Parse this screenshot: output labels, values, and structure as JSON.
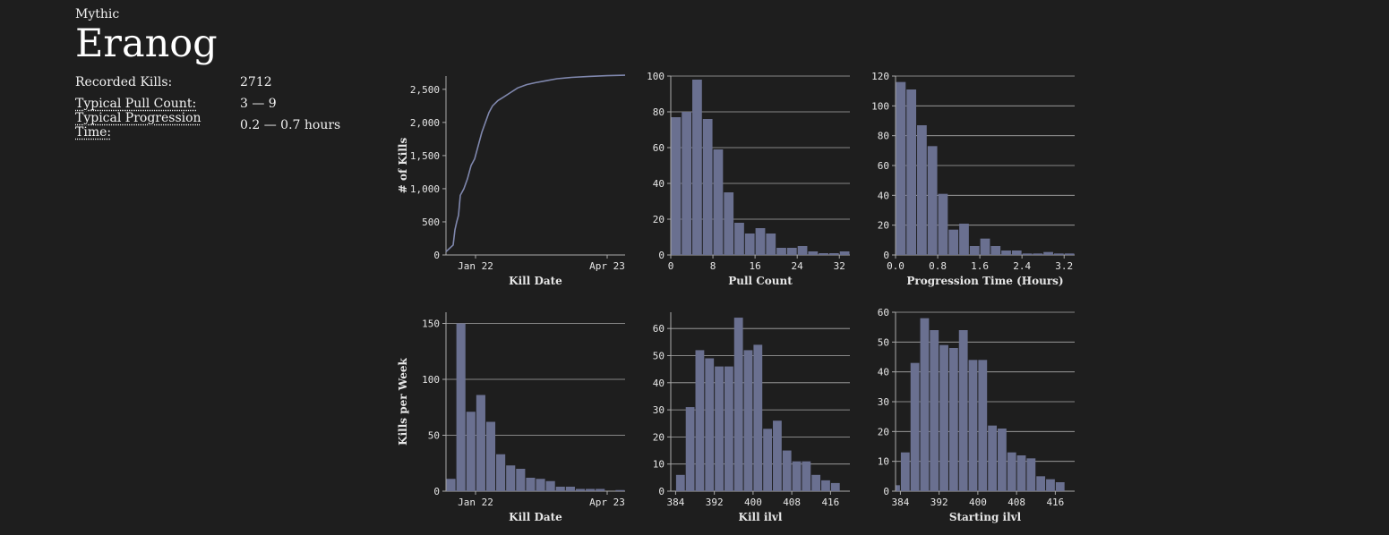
{
  "header": {
    "difficulty": "Mythic",
    "boss_name": "Eranog"
  },
  "stats": [
    {
      "label": "Recorded Kills:",
      "value": "2712",
      "underline": false
    },
    {
      "label": "Typical Pull Count:",
      "value": "3 — 9",
      "underline": true
    },
    {
      "label": "Typical Progression Time:",
      "value": "0.2 — 0.7 hours",
      "underline": true
    }
  ],
  "colors": {
    "bar": "#6a7090",
    "line": "#8088ae",
    "grid": "#aaaaaa",
    "background": "#1e1e1e"
  },
  "chart_data": [
    {
      "id": "cumulative",
      "type": "line",
      "xlabel": "Kill Date",
      "ylabel": "# of Kills",
      "xticks": [
        "Jan 22",
        "Apr 23"
      ],
      "ylim": [
        0,
        2700
      ],
      "yticks": [
        {
          "v": 0,
          "t": "0"
        },
        {
          "v": 500,
          "t": "500"
        },
        {
          "v": 1000,
          "t": "1,000"
        },
        {
          "v": 1500,
          "t": "1,500"
        },
        {
          "v": 2000,
          "t": "2,000"
        },
        {
          "v": 2500,
          "t": "2,500"
        }
      ],
      "grid": false,
      "x": [
        0,
        0.02,
        0.04,
        0.05,
        0.06,
        0.07,
        0.08,
        0.09,
        0.1,
        0.12,
        0.14,
        0.16,
        0.18,
        0.2,
        0.22,
        0.24,
        0.26,
        0.29,
        0.32,
        0.36,
        0.4,
        0.45,
        0.5,
        0.56,
        0.62,
        0.7,
        0.8,
        0.9,
        1.0
      ],
      "y": [
        50,
        100,
        150,
        380,
        500,
        600,
        900,
        950,
        1000,
        1150,
        1350,
        1450,
        1650,
        1850,
        2000,
        2150,
        2250,
        2330,
        2380,
        2450,
        2520,
        2570,
        2600,
        2630,
        2660,
        2680,
        2695,
        2705,
        2712
      ]
    },
    {
      "id": "pull-count",
      "type": "bar",
      "xlabel": "Pull Count",
      "ylabel": "",
      "ylim": [
        0,
        100
      ],
      "yticks": [
        {
          "v": 0,
          "t": "0"
        },
        {
          "v": 20,
          "t": "20"
        },
        {
          "v": 40,
          "t": "40"
        },
        {
          "v": 60,
          "t": "60"
        },
        {
          "v": 80,
          "t": "80"
        },
        {
          "v": 100,
          "t": "100"
        }
      ],
      "xrange": [
        0,
        34
      ],
      "bin_width": 2,
      "xticks": [
        {
          "v": 0,
          "t": "0"
        },
        {
          "v": 8,
          "t": "8"
        },
        {
          "v": 16,
          "t": "16"
        },
        {
          "v": 24,
          "t": "24"
        },
        {
          "v": 32,
          "t": "32"
        }
      ],
      "values": [
        77,
        80,
        98,
        76,
        59,
        35,
        18,
        12,
        15,
        12,
        4,
        4,
        5,
        2,
        1,
        1,
        2
      ]
    },
    {
      "id": "progression-time",
      "type": "bar",
      "xlabel": "Progression Time (Hours)",
      "ylabel": "",
      "ylim": [
        0,
        120
      ],
      "yticks": [
        {
          "v": 0,
          "t": "0"
        },
        {
          "v": 20,
          "t": "20"
        },
        {
          "v": 40,
          "t": "40"
        },
        {
          "v": 60,
          "t": "60"
        },
        {
          "v": 80,
          "t": "80"
        },
        {
          "v": 100,
          "t": "100"
        },
        {
          "v": 120,
          "t": "120"
        }
      ],
      "xrange": [
        0,
        3.4
      ],
      "bin_width": 0.2,
      "xticks": [
        {
          "v": 0,
          "t": "0.0"
        },
        {
          "v": 0.8,
          "t": "0.8"
        },
        {
          "v": 1.6,
          "t": "1.6"
        },
        {
          "v": 2.4,
          "t": "2.4"
        },
        {
          "v": 3.2,
          "t": "3.2"
        }
      ],
      "values": [
        116,
        111,
        87,
        73,
        41,
        17,
        21,
        6,
        11,
        6,
        3,
        3,
        1,
        1,
        2,
        1,
        1
      ]
    },
    {
      "id": "kills-per-week",
      "type": "bar",
      "xlabel": "Kill Date",
      "ylabel": "Kills per Week",
      "ylim": [
        0,
        160
      ],
      "yticks": [
        {
          "v": 0,
          "t": "0"
        },
        {
          "v": 50,
          "t": "50"
        },
        {
          "v": 100,
          "t": "100"
        },
        {
          "v": 150,
          "t": "150"
        }
      ],
      "xticks": [
        "Jan 22",
        "Apr 23"
      ],
      "values": [
        11,
        150,
        71,
        86,
        62,
        33,
        23,
        20,
        12,
        11,
        9,
        4,
        4,
        2,
        2,
        2,
        0,
        1
      ]
    },
    {
      "id": "kill-ilvl",
      "type": "bar",
      "xlabel": "Kill ilvl",
      "ylabel": "",
      "ylim": [
        0,
        66
      ],
      "yticks": [
        {
          "v": 0,
          "t": "0"
        },
        {
          "v": 10,
          "t": "10"
        },
        {
          "v": 20,
          "t": "20"
        },
        {
          "v": 30,
          "t": "30"
        },
        {
          "v": 40,
          "t": "40"
        },
        {
          "v": 50,
          "t": "50"
        },
        {
          "v": 60,
          "t": "60"
        }
      ],
      "xrange": [
        383,
        420
      ],
      "bin_width": 2,
      "bin_start": 384,
      "xticks": [
        {
          "v": 384,
          "t": "384"
        },
        {
          "v": 392,
          "t": "392"
        },
        {
          "v": 400,
          "t": "400"
        },
        {
          "v": 408,
          "t": "408"
        },
        {
          "v": 416,
          "t": "416"
        }
      ],
      "values": [
        6,
        31,
        52,
        49,
        46,
        46,
        64,
        52,
        54,
        23,
        26,
        15,
        11,
        11,
        6,
        4,
        3
      ]
    },
    {
      "id": "starting-ilvl",
      "type": "bar",
      "xlabel": "Starting ilvl",
      "ylabel": "",
      "ylim": [
        0,
        60
      ],
      "yticks": [
        {
          "v": 0,
          "t": "0"
        },
        {
          "v": 10,
          "t": "10"
        },
        {
          "v": 20,
          "t": "20"
        },
        {
          "v": 30,
          "t": "30"
        },
        {
          "v": 40,
          "t": "40"
        },
        {
          "v": 50,
          "t": "50"
        },
        {
          "v": 60,
          "t": "60"
        }
      ],
      "xrange": [
        383,
        420
      ],
      "bin_width": 2,
      "bin_start": 382,
      "xticks": [
        {
          "v": 384,
          "t": "384"
        },
        {
          "v": 392,
          "t": "392"
        },
        {
          "v": 400,
          "t": "400"
        },
        {
          "v": 408,
          "t": "408"
        },
        {
          "v": 416,
          "t": "416"
        }
      ],
      "values": [
        2,
        13,
        43,
        58,
        54,
        49,
        48,
        54,
        44,
        44,
        22,
        21,
        13,
        12,
        11,
        5,
        4,
        3
      ]
    }
  ]
}
